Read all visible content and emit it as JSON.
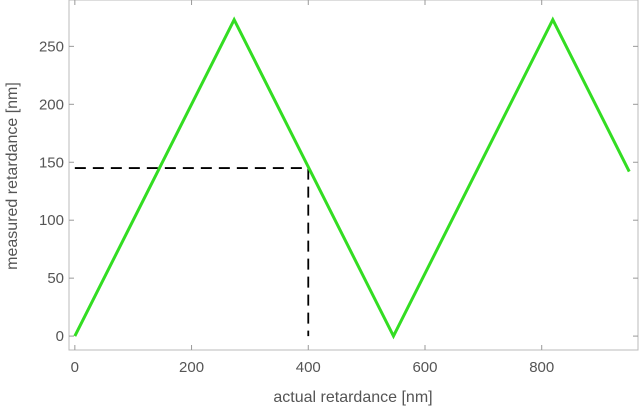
{
  "chart_data": {
    "type": "line",
    "title": "",
    "xlabel": "actual retardance [nm]",
    "ylabel": "measured retardance [nm]",
    "xlim": [
      -10,
      965
    ],
    "ylim": [
      -12,
      290
    ],
    "xticks": [
      0,
      200,
      400,
      600,
      800
    ],
    "yticks": [
      0,
      50,
      100,
      150,
      200,
      250
    ],
    "series": [
      {
        "color": "#33dd22",
        "x": [
          0,
          273,
          546,
          819,
          950
        ],
        "y": [
          0,
          273,
          0,
          273,
          142
        ]
      }
    ],
    "reference_lines": {
      "color": "#000000",
      "style": "dashed",
      "points": [
        [
          0,
          145
        ],
        [
          400,
          145
        ],
        [
          400,
          0
        ]
      ]
    },
    "grid": false,
    "frame": "full"
  }
}
